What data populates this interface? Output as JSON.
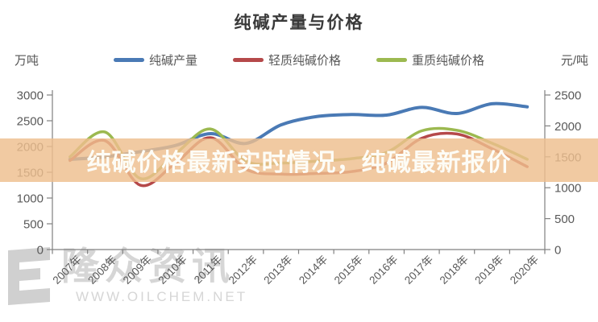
{
  "header": {
    "title": "纯碱产量与价格",
    "left_unit": "万吨",
    "right_unit": "元/吨"
  },
  "overlay": {
    "headline": "纯碱价格最新实时情况，纯碱最新报价",
    "band_rgba": "rgba(238,190,142,0.82)",
    "text_color": "#fdfcf6"
  },
  "watermark": {
    "brand": "隆众资讯",
    "url": "WWW.OILCHEM.NET",
    "color": "#d6d6d6"
  },
  "chart_data": {
    "type": "line",
    "title": "纯碱产量与价格",
    "grid": false,
    "legend_position": "top",
    "categories": [
      "2007年",
      "2008年",
      "2009年",
      "2010年",
      "2011年",
      "2012年",
      "2013年",
      "2014年",
      "2015年",
      "2016年",
      "2017年",
      "2018年",
      "2019年",
      "2020年"
    ],
    "series": [
      {
        "name": "纯碱产量",
        "axis": "left",
        "color": "#4a7ab5",
        "width": 4,
        "values": [
          1750,
          1800,
          1900,
          2020,
          2250,
          2060,
          2420,
          2580,
          2620,
          2610,
          2760,
          2640,
          2830,
          2770
        ]
      },
      {
        "name": "轻质纯碱价格",
        "axis": "right",
        "color": "#b5494a",
        "width": 3.5,
        "values": [
          1440,
          1760,
          1040,
          1400,
          1810,
          1300,
          1220,
          1230,
          1260,
          1400,
          1800,
          1870,
          1630,
          1340
        ]
      },
      {
        "name": "重质纯碱价格",
        "axis": "right",
        "color": "#9cb950",
        "width": 3.5,
        "values": [
          1500,
          1900,
          1150,
          1550,
          1950,
          1430,
          1400,
          1430,
          1470,
          1570,
          1920,
          1930,
          1720,
          1460
        ]
      }
    ],
    "left_axis": {
      "label": "万吨",
      "min": 0,
      "max": 3000,
      "ticks": [
        0,
        500,
        1000,
        1500,
        2000,
        2500,
        3000
      ]
    },
    "right_axis": {
      "label": "元/吨",
      "min": 0,
      "max": 2500,
      "ticks": [
        0,
        500,
        1000,
        1500,
        2000,
        2500
      ]
    },
    "axis_color": "#808080",
    "tick_label_color": "#595959"
  }
}
